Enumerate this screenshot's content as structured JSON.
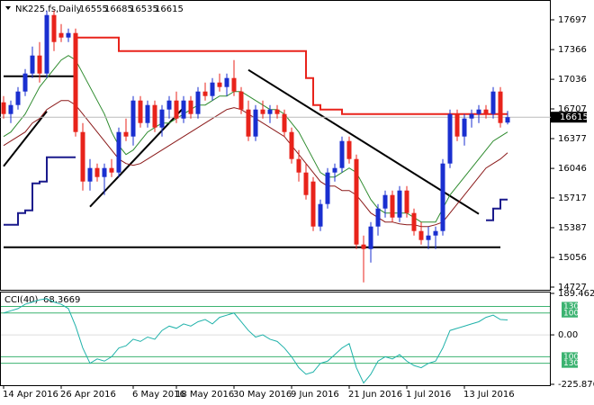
{
  "chart_data": {
    "type": "candlestick",
    "symbol": "NK225.fs,Daily",
    "categories": [
      "14 Apr 2016",
      null,
      null,
      null,
      null,
      null,
      null,
      null,
      "26 Apr 2016",
      null,
      null,
      null,
      null,
      null,
      null,
      null,
      null,
      null,
      "6 May 2016",
      null,
      null,
      null,
      null,
      null,
      "18 May 2016",
      null,
      null,
      null,
      null,
      null,
      null,
      null,
      "30 May 2016",
      null,
      null,
      null,
      null,
      null,
      null,
      null,
      "9 Jun 2016",
      null,
      null,
      null,
      null,
      null,
      null,
      null,
      "21 Jun 2016",
      null,
      null,
      null,
      null,
      null,
      null,
      null,
      "1 Jul 2016",
      null,
      null,
      null,
      null,
      null,
      null,
      null,
      "13 Jul 2016",
      null,
      null,
      null,
      null,
      null,
      null
    ],
    "open": [
      16780,
      16650,
      16750,
      16900,
      17100,
      17300,
      17100,
      17750,
      17550,
      17500,
      17550,
      16450,
      15900,
      16050,
      15950,
      16050,
      16000,
      16450,
      16400,
      16800,
      16550,
      16750,
      16500,
      16700,
      16800,
      16600,
      16800,
      16650,
      16900,
      16850,
      17000,
      16950,
      17050,
      16900,
      16700,
      16400,
      16700,
      16650,
      16700,
      16650,
      16450,
      16150,
      16000,
      15900,
      15400,
      15650,
      16000,
      16050,
      16350,
      16150,
      15200,
      15150,
      15400,
      15600,
      15750,
      15500,
      15800,
      15550,
      15350,
      15250,
      15300,
      15350,
      16100,
      16650,
      16400,
      16600,
      16650,
      16700,
      16650,
      16900,
      16555
    ],
    "high": [
      16850,
      16800,
      16950,
      17150,
      17400,
      17450,
      17800,
      17800,
      17650,
      17600,
      17600,
      16550,
      16150,
      16100,
      16100,
      16150,
      16500,
      16600,
      16850,
      16850,
      16800,
      16800,
      16750,
      16850,
      16900,
      16850,
      16850,
      16950,
      17000,
      17050,
      17100,
      17100,
      17250,
      16950,
      16800,
      16750,
      16800,
      16750,
      16750,
      16700,
      16500,
      16250,
      16100,
      15950,
      15700,
      16050,
      16100,
      16400,
      16400,
      16200,
      15300,
      15450,
      15650,
      15800,
      15800,
      15850,
      15850,
      15600,
      15450,
      15400,
      15400,
      16150,
      16700,
      16700,
      16650,
      16700,
      16750,
      16750,
      16950,
      16950,
      16685
    ],
    "low": [
      16600,
      16550,
      16700,
      16850,
      17050,
      17000,
      17050,
      17350,
      17450,
      17450,
      16400,
      15800,
      15800,
      15900,
      15750,
      15950,
      15950,
      16350,
      16300,
      16500,
      16500,
      16450,
      16400,
      16600,
      16550,
      16550,
      16600,
      16600,
      16800,
      16800,
      16900,
      16850,
      16850,
      16650,
      16350,
      16350,
      16600,
      16550,
      16600,
      16400,
      16100,
      15900,
      15700,
      15350,
      15350,
      15600,
      15900,
      16000,
      16100,
      15150,
      14780,
      15000,
      15300,
      15500,
      15450,
      15450,
      15500,
      15300,
      15200,
      15150,
      15150,
      15300,
      16050,
      16350,
      16300,
      16500,
      16550,
      16600,
      16600,
      16500,
      16535
    ],
    "close": [
      16650,
      16750,
      16900,
      17100,
      17300,
      17100,
      17750,
      17450,
      17500,
      17550,
      16450,
      15900,
      16050,
      15950,
      16050,
      16000,
      16450,
      16400,
      16800,
      16550,
      16750,
      16500,
      16700,
      16800,
      16600,
      16800,
      16650,
      16900,
      16850,
      17000,
      16950,
      17050,
      16900,
      16700,
      16400,
      16700,
      16650,
      16700,
      16650,
      16450,
      16150,
      16000,
      15750,
      15400,
      15650,
      16000,
      16050,
      16350,
      16150,
      15200,
      15150,
      15400,
      15600,
      15750,
      15500,
      15800,
      15550,
      15350,
      15250,
      15300,
      15350,
      16100,
      16650,
      16400,
      16600,
      16650,
      16700,
      16650,
      16900,
      16550,
      16615
    ],
    "up_color": "#1a2fd0",
    "down_color": "#e8231b",
    "ylim": [
      14697,
      17897
    ],
    "yticks": [
      17697,
      17366,
      17036,
      16707,
      16377,
      16046,
      15717,
      15387,
      15056,
      14727
    ],
    "overlays": [
      {
        "color": "#e8231b",
        "step": true,
        "values": [
          null,
          null,
          null,
          null,
          null,
          null,
          null,
          null,
          null,
          null,
          17500,
          17500,
          17500,
          17500,
          17500,
          17500,
          17350,
          17350,
          17350,
          17350,
          17350,
          17350,
          17350,
          17350,
          17350,
          17350,
          17350,
          17350,
          17350,
          17350,
          17350,
          17350,
          17350,
          17350,
          17350,
          17350,
          17350,
          17350,
          17350,
          17350,
          17350,
          17350,
          17050,
          16750,
          16700,
          16700,
          16700,
          16650,
          16650,
          16650,
          16650,
          16650,
          16650,
          16650,
          16650,
          16650,
          16650,
          16650,
          16650,
          16650,
          16650,
          16650,
          16650,
          16650,
          16650,
          16650,
          16650,
          16650,
          16650,
          16650,
          16650
        ]
      },
      {
        "color": "#1a1a8c",
        "step": true,
        "values": [
          15420,
          15420,
          15550,
          15580,
          15880,
          15900,
          16170,
          16170,
          16170,
          16170,
          16170,
          null,
          null,
          null,
          null,
          null,
          null,
          null,
          null,
          null,
          null,
          null,
          null,
          null,
          null,
          null,
          null,
          null,
          null,
          null,
          null,
          null,
          null,
          null,
          null,
          null,
          null,
          null,
          null,
          null,
          null,
          null,
          null,
          null,
          null,
          null,
          null,
          null,
          null,
          null,
          null,
          null,
          null,
          null,
          null,
          null,
          null,
          null,
          null,
          null,
          null,
          null,
          null,
          null,
          null,
          null,
          null,
          15470,
          15600,
          15700,
          15700
        ]
      },
      {
        "color": "#2e8b2e",
        "step": false,
        "values": [
          16400,
          16450,
          16550,
          16650,
          16800,
          16950,
          17050,
          17150,
          17250,
          17300,
          17250,
          17100,
          16950,
          16800,
          16650,
          16450,
          16300,
          16200,
          16250,
          16350,
          16450,
          16500,
          16550,
          16550,
          16600,
          16650,
          16700,
          16750,
          16750,
          16800,
          16850,
          16850,
          16900,
          16900,
          16850,
          16800,
          16750,
          16700,
          16700,
          16650,
          16550,
          16450,
          16300,
          16150,
          16000,
          15950,
          15950,
          16000,
          16050,
          16000,
          15850,
          15700,
          15600,
          15550,
          15550,
          15550,
          15550,
          15500,
          15450,
          15450,
          15450,
          15600,
          15750,
          15850,
          15950,
          16050,
          16150,
          16250,
          16350,
          16400,
          16450
        ]
      },
      {
        "color": "#8b1a1a",
        "step": false,
        "values": [
          16300,
          16350,
          16400,
          16450,
          16550,
          16600,
          16700,
          16750,
          16800,
          16800,
          16750,
          16650,
          16550,
          16450,
          16350,
          16250,
          16150,
          16100,
          16080,
          16100,
          16150,
          16200,
          16250,
          16300,
          16350,
          16400,
          16450,
          16500,
          16550,
          16600,
          16650,
          16700,
          16720,
          16700,
          16650,
          16600,
          16550,
          16500,
          16450,
          16400,
          16300,
          16200,
          16100,
          16000,
          15900,
          15850,
          15850,
          15800,
          15800,
          15750,
          15650,
          15550,
          15500,
          15450,
          15450,
          15430,
          15420,
          15420,
          15400,
          15400,
          15420,
          15450,
          15550,
          15650,
          15750,
          15850,
          15950,
          16050,
          16100,
          16150,
          16220
        ]
      }
    ],
    "lines": [
      {
        "x": [
          0,
          10
        ],
        "y": [
          17070,
          17070
        ]
      },
      {
        "x": [
          0,
          69
        ],
        "y": [
          15170,
          15170
        ]
      },
      {
        "x": [
          0,
          6
        ],
        "y": [
          16070,
          16680
        ]
      },
      {
        "x": [
          12,
          25
        ],
        "y": [
          15620,
          16720
        ]
      },
      {
        "x": [
          34,
          66
        ],
        "y": [
          17140,
          15540
        ]
      }
    ],
    "line_color": "#000000",
    "cci": {
      "label": "CCI(40)",
      "color": "#20b2aa",
      "level_color": "#3cb371",
      "ylim": [
        -225.876,
        189.4629
      ],
      "yticks": [
        189.4629,
        {
          "value": 0,
          "label": "0.00"
        },
        -225.876
      ],
      "levels": [
        130,
        100,
        {
          "value": -100,
          "label": "100"
        },
        {
          "value": -130,
          "label": "130"
        }
      ],
      "values": [
        100,
        110,
        120,
        140,
        150,
        160,
        165,
        150,
        140,
        120,
        40,
        -60,
        -130,
        -110,
        -120,
        -100,
        -60,
        -50,
        -20,
        -30,
        -10,
        -20,
        20,
        40,
        30,
        50,
        40,
        60,
        70,
        50,
        80,
        90,
        100,
        60,
        20,
        -10,
        0,
        -20,
        -30,
        -60,
        -100,
        -150,
        -180,
        -170,
        -130,
        -120,
        -90,
        -60,
        -40,
        -150,
        -220,
        -180,
        -120,
        -100,
        -110,
        -90,
        -120,
        -140,
        -150,
        -130,
        -120,
        -60,
        20,
        30,
        40,
        50,
        60,
        80,
        90,
        70,
        68.3669
      ]
    }
  }
}
